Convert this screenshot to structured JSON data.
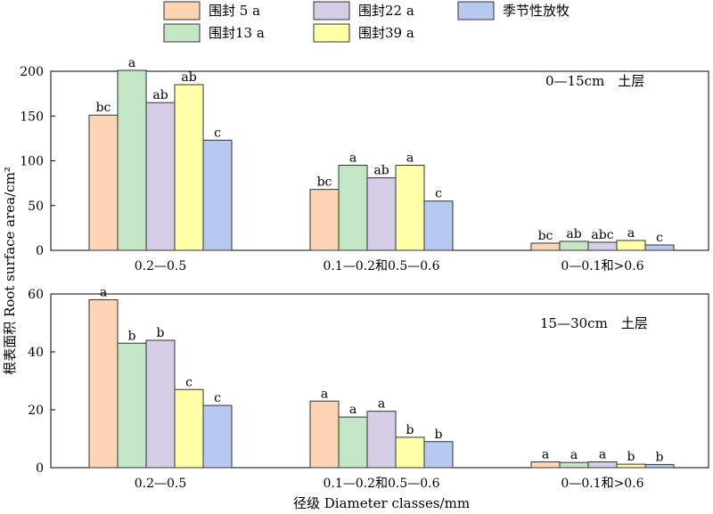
{
  "legend": [
    {
      "label": "围封 5 a",
      "color": "#FDD5B4"
    },
    {
      "label": "围封13 a",
      "color": "#C3E6C4"
    },
    {
      "label": "围封22 a",
      "color": "#D5CCE6"
    },
    {
      "label": "围封39 a",
      "color": "#FFFFA8"
    },
    {
      "label": "季节性放牧",
      "color": "#B7C9F1"
    }
  ],
  "ylabel": "根表面积 Root surface area/cm²",
  "xlabel": "径级 Diameter classes/mm",
  "chart_data": [
    {
      "type": "bar",
      "annotation": "0—15cm　土层",
      "categories": [
        "0.2—0.5",
        "0.1—0.2和0.5—0.6",
        "0—0.1和>0.6"
      ],
      "ylim": [
        0,
        200
      ],
      "yticks": [
        0,
        50,
        100,
        150,
        200
      ],
      "series": [
        {
          "name": "围封 5 a",
          "values": [
            151,
            68,
            8
          ],
          "labels": [
            "bc",
            "bc",
            "bc"
          ]
        },
        {
          "name": "围封13 a",
          "values": [
            201,
            95,
            10
          ],
          "labels": [
            "a",
            "a",
            "ab"
          ]
        },
        {
          "name": "围封22 a",
          "values": [
            165,
            81,
            9
          ],
          "labels": [
            "ab",
            "ab",
            "abc"
          ]
        },
        {
          "name": "围封39 a",
          "values": [
            185,
            95,
            11
          ],
          "labels": [
            "ab",
            "a",
            "a"
          ]
        },
        {
          "name": "季节性放牧",
          "values": [
            123,
            55,
            6
          ],
          "labels": [
            "c",
            "c",
            "c"
          ]
        }
      ]
    },
    {
      "type": "bar",
      "annotation": "15—30cm　土层",
      "categories": [
        "0.2—0.5",
        "0.1—0.2和0.5—0.6",
        "0—0.1和>0.6"
      ],
      "ylim": [
        0,
        60
      ],
      "yticks": [
        0,
        20,
        40,
        60
      ],
      "series": [
        {
          "name": "围封 5 a",
          "values": [
            58,
            23,
            2
          ],
          "labels": [
            "a",
            "a",
            "a"
          ]
        },
        {
          "name": "围封13 a",
          "values": [
            43,
            17.5,
            1.8
          ],
          "labels": [
            "b",
            "a",
            "a"
          ]
        },
        {
          "name": "围封22 a",
          "values": [
            44,
            19.5,
            2
          ],
          "labels": [
            "b",
            "a",
            "a"
          ]
        },
        {
          "name": "围封39 a",
          "values": [
            27,
            10.5,
            1.2
          ],
          "labels": [
            "c",
            "b",
            "b"
          ]
        },
        {
          "name": "季节性放牧",
          "values": [
            21.5,
            9,
            1.1
          ],
          "labels": [
            "c",
            "b",
            "b"
          ]
        }
      ]
    }
  ]
}
